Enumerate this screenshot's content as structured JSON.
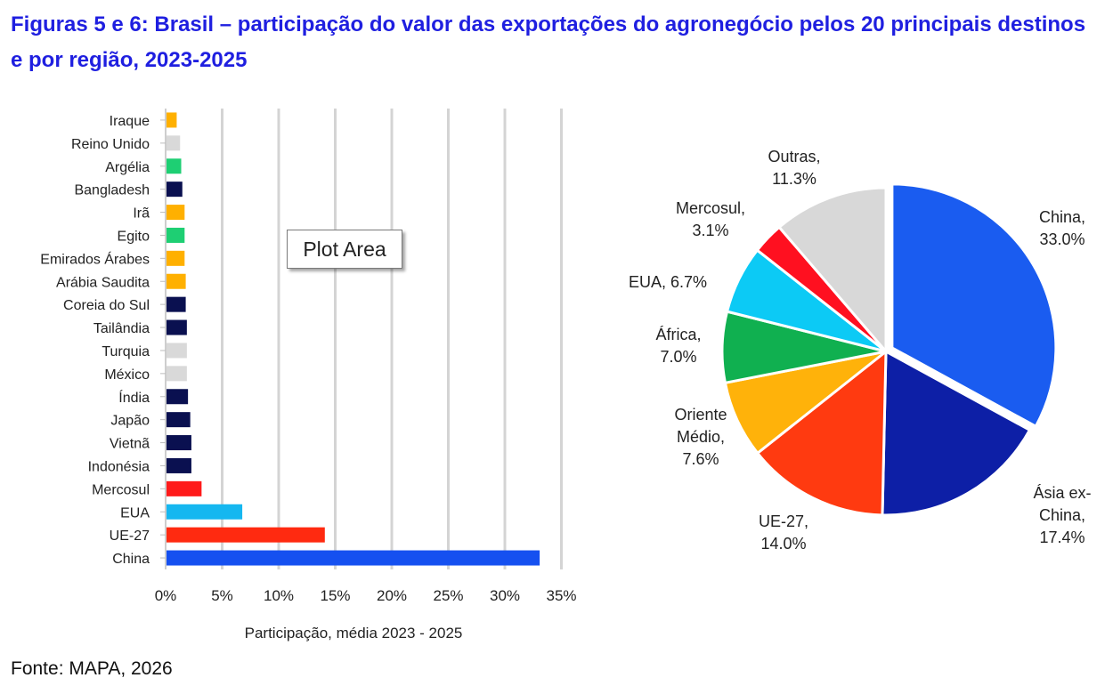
{
  "title": "Figuras 5 e 6: Brasil – participação do valor das exportações do agronegócio pelos 20 principais destinos e por região, 2023-2025",
  "source": "Fonte: MAPA, 2026",
  "tooltip": "Plot Area",
  "chart_data": [
    {
      "type": "bar",
      "orientation": "horizontal",
      "xlabel": "Participação, média 2023 - 2025",
      "xlim": [
        0,
        35
      ],
      "xticks": [
        "0%",
        "5%",
        "10%",
        "15%",
        "20%",
        "25%",
        "30%",
        "35%"
      ],
      "grid": true,
      "categories": [
        "Iraque",
        "Reino Unido",
        "Argélia",
        "Bangladesh",
        "Irã",
        "Egito",
        "Emirados Árabes",
        "Arábia Saudita",
        "Coreia do Sul",
        "Tailândia",
        "Turquia",
        "México",
        "Índia",
        "Japão",
        "Vietnã",
        "Indonésia",
        "Mercosul",
        "EUA",
        "UE-27",
        "China"
      ],
      "values": [
        0.9,
        1.2,
        1.3,
        1.4,
        1.6,
        1.6,
        1.6,
        1.7,
        1.7,
        1.8,
        1.8,
        1.8,
        1.9,
        2.1,
        2.2,
        2.2,
        3.1,
        6.7,
        14.0,
        33.0
      ],
      "colors": [
        "#ffb000",
        "#d9d9d9",
        "#1ecf73",
        "#0a1050",
        "#ffb000",
        "#1ecf73",
        "#ffb000",
        "#ffb000",
        "#0a1050",
        "#0a1050",
        "#d9d9d9",
        "#d9d9d9",
        "#0a1050",
        "#0a1050",
        "#0a1050",
        "#0a1050",
        "#ff1a1a",
        "#15b7f0",
        "#ff2a10",
        "#1550f0"
      ]
    },
    {
      "type": "pie",
      "slices": [
        {
          "label": "China,",
          "value_label": "33.0%",
          "value": 33.0,
          "color": "#1a5cf0"
        },
        {
          "label": "Ásia ex-",
          "label2": "China,",
          "value_label": "17.4%",
          "value": 17.4,
          "color": "#0d1fa6"
        },
        {
          "label": "UE-27,",
          "value_label": "14.0%",
          "value": 14.0,
          "color": "#ff3a10"
        },
        {
          "label": "Oriente",
          "label2": "Médio,",
          "value_label": "7.6%",
          "value": 7.6,
          "color": "#ffb20a"
        },
        {
          "label": "África,",
          "value_label": "7.0%",
          "value": 7.0,
          "color": "#10b050"
        },
        {
          "label": "EUA, 6.7%",
          "value_label": "",
          "value": 6.7,
          "color": "#0ccaf5"
        },
        {
          "label": "Mercosul,",
          "value_label": "3.1%",
          "value": 3.1,
          "color": "#ff1020"
        },
        {
          "label": "Outras,",
          "value_label": "11.3%",
          "value": 11.3,
          "color": "#d8d8d8"
        }
      ]
    }
  ]
}
